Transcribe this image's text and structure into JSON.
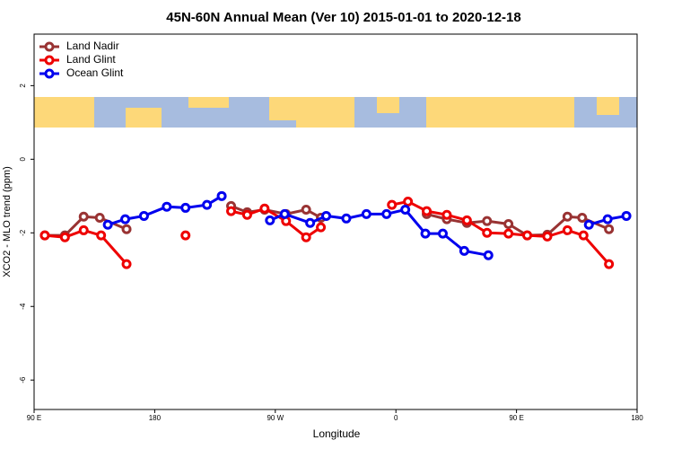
{
  "chart_data": {
    "type": "line",
    "title": "45N-60N Annual Mean (Ver 10)   2015-01-01 to 2020-12-18",
    "x_label": "Longitude",
    "y_label": "XCO2 - MLO trend (ppm)",
    "xlim": [
      90,
      540
    ],
    "ylim": [
      -6.8,
      3.4
    ],
    "xticks": [
      {
        "value": 90,
        "label": "90 E"
      },
      180,
      {
        "value": 270,
        "label": "90 W"
      },
      {
        "value": 360,
        "label": "0"
      },
      {
        "value": 450,
        "label": "90 E"
      },
      {
        "value": 540,
        "label": "180"
      }
    ],
    "yticks": [
      2,
      0,
      -2,
      -4,
      -6
    ],
    "legend": "top-left",
    "series": [
      {
        "name": "Land Nadir",
        "color": "#993333",
        "x": [
          98,
          113,
          127,
          139,
          159,
          null,
          237,
          249,
          262,
          278,
          293,
          304,
          null,
          383,
          398,
          413,
          428,
          444,
          458,
          473,
          488,
          499,
          519
        ],
        "values": [
          -2.07,
          -2.07,
          -1.56,
          -1.59,
          -1.9,
          null,
          -1.27,
          -1.44,
          -1.37,
          -1.49,
          -1.37,
          -1.59,
          null,
          -1.49,
          -1.63,
          -1.73,
          -1.68,
          -1.76,
          -2.07,
          -2.05,
          -1.56,
          -1.59,
          -1.9
        ]
      },
      {
        "name": "Land Glint",
        "color": "#ee0000",
        "x": [
          98,
          113,
          127,
          140,
          159,
          null,
          203,
          null,
          237,
          249,
          262,
          278,
          293,
          304,
          null,
          357,
          369,
          383,
          398,
          413,
          428,
          444,
          458,
          473,
          488,
          500,
          519
        ],
        "values": [
          -2.07,
          -2.12,
          -1.93,
          -2.07,
          -2.85,
          null,
          -2.07,
          null,
          -1.41,
          -1.51,
          -1.34,
          -1.68,
          -2.12,
          -1.85,
          null,
          -1.24,
          -1.15,
          -1.41,
          -1.51,
          -1.66,
          -2.0,
          -2.02,
          -2.07,
          -2.1,
          -1.93,
          -2.07,
          -2.85
        ]
      },
      {
        "name": "Ocean Glint",
        "color": "#0000ee",
        "x": [
          145,
          158,
          172,
          189,
          203,
          219,
          230,
          null,
          266,
          277,
          296,
          308,
          323,
          338,
          353,
          367,
          382,
          395,
          411,
          429,
          null,
          504,
          518,
          532
        ],
        "values": [
          -1.78,
          -1.63,
          -1.54,
          -1.29,
          -1.32,
          -1.24,
          -1.0,
          null,
          -1.66,
          -1.49,
          -1.73,
          -1.54,
          -1.61,
          -1.49,
          -1.49,
          -1.37,
          -2.02,
          -2.02,
          -2.49,
          -2.61,
          null,
          -1.78,
          -1.63,
          -1.54
        ]
      }
    ]
  }
}
